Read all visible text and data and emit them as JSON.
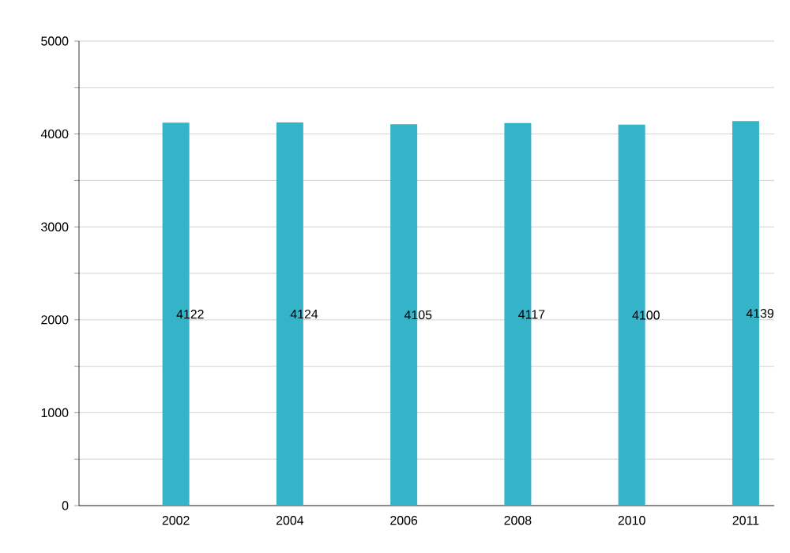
{
  "chart_data": {
    "type": "bar",
    "categories": [
      "2002",
      "2004",
      "2006",
      "2008",
      "2010",
      "2011"
    ],
    "values": [
      4122,
      4124,
      4105,
      4117,
      4100,
      4139
    ],
    "color": "#35b3c9",
    "ylim": [
      0,
      5000
    ],
    "yticks": [
      0,
      {
        "value": 500,
        "label": null
      },
      1000,
      {
        "value": 1500,
        "label": null
      },
      2000,
      {
        "value": 2500,
        "label": null
      },
      3000,
      {
        "value": 3500,
        "label": null
      },
      4000,
      {
        "value": 4500,
        "label": null
      },
      5000
    ],
    "grid": "y",
    "data_labels": true
  }
}
